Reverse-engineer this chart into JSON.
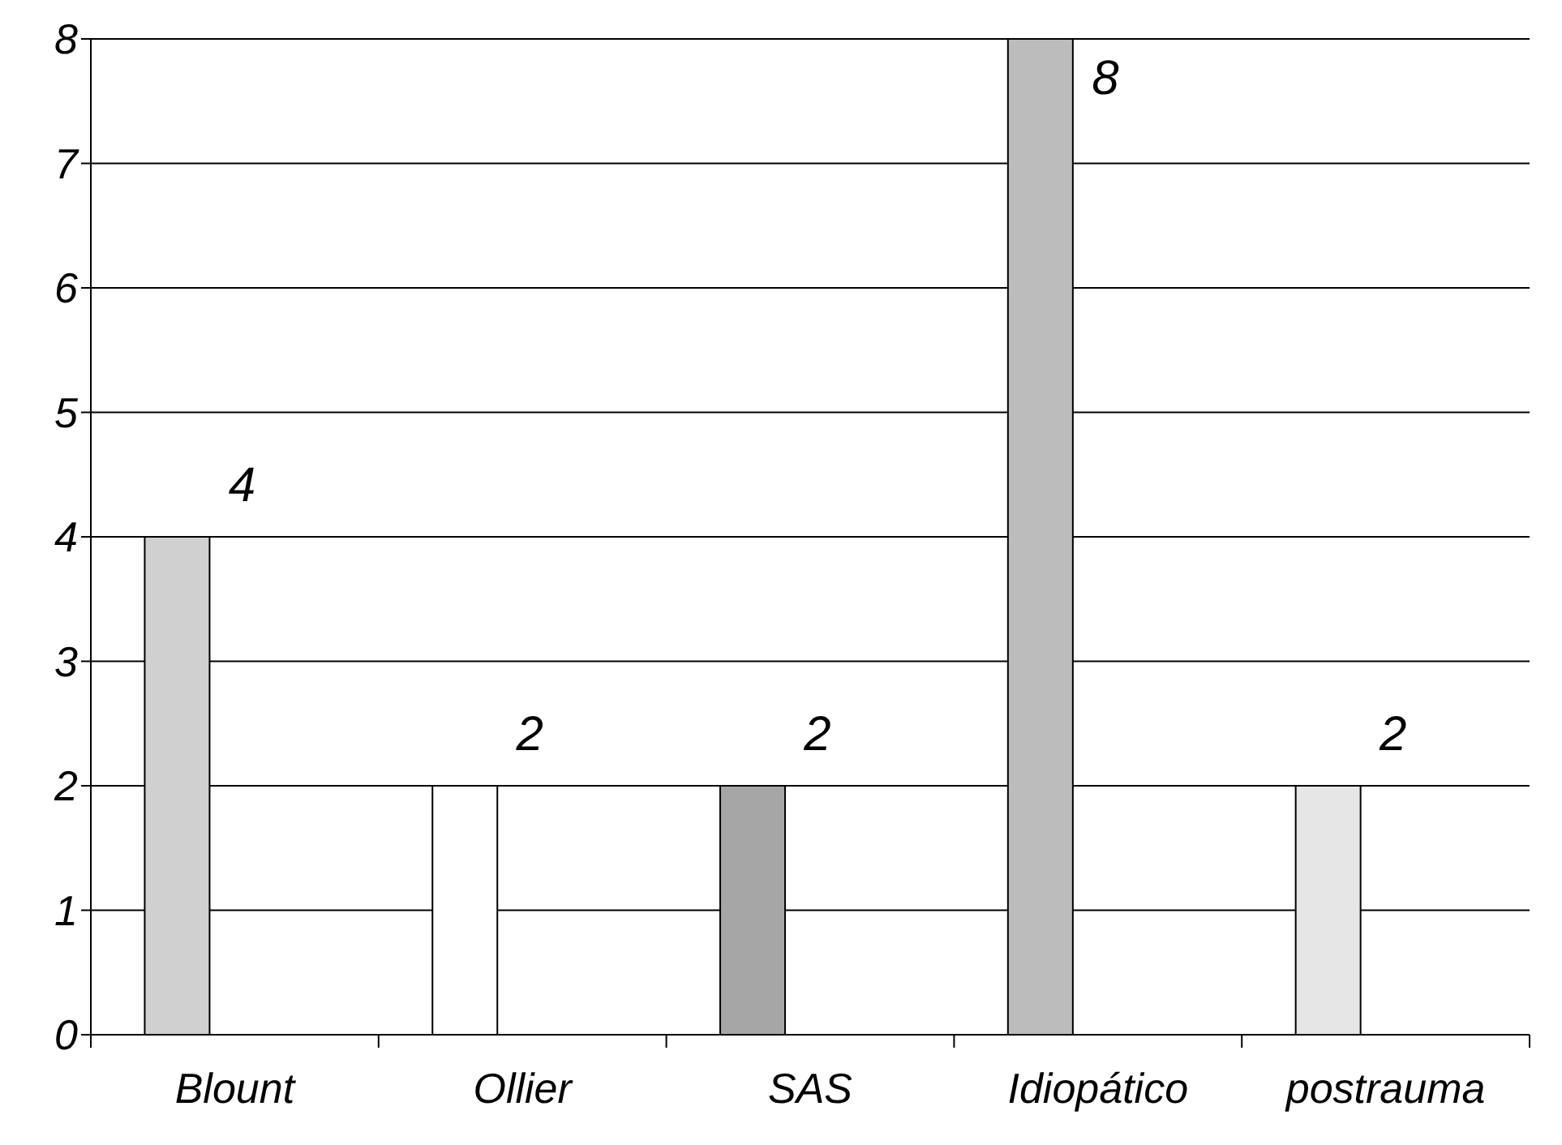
{
  "chart_data": {
    "type": "bar",
    "categories": [
      "Blount",
      "Ollier",
      "SAS",
      "Idiopático",
      "postrauma"
    ],
    "values": [
      4,
      2,
      2,
      8,
      2
    ],
    "colors": [
      "#d0d0d0",
      "#ffffff",
      "#a6a6a6",
      "#bcbcbc",
      "#e6e6e6"
    ],
    "ylim": [
      0,
      8
    ],
    "yticks": [
      0,
      1,
      2,
      3,
      4,
      5,
      6,
      7,
      8
    ],
    "grid": "y",
    "data_labels": true
  }
}
